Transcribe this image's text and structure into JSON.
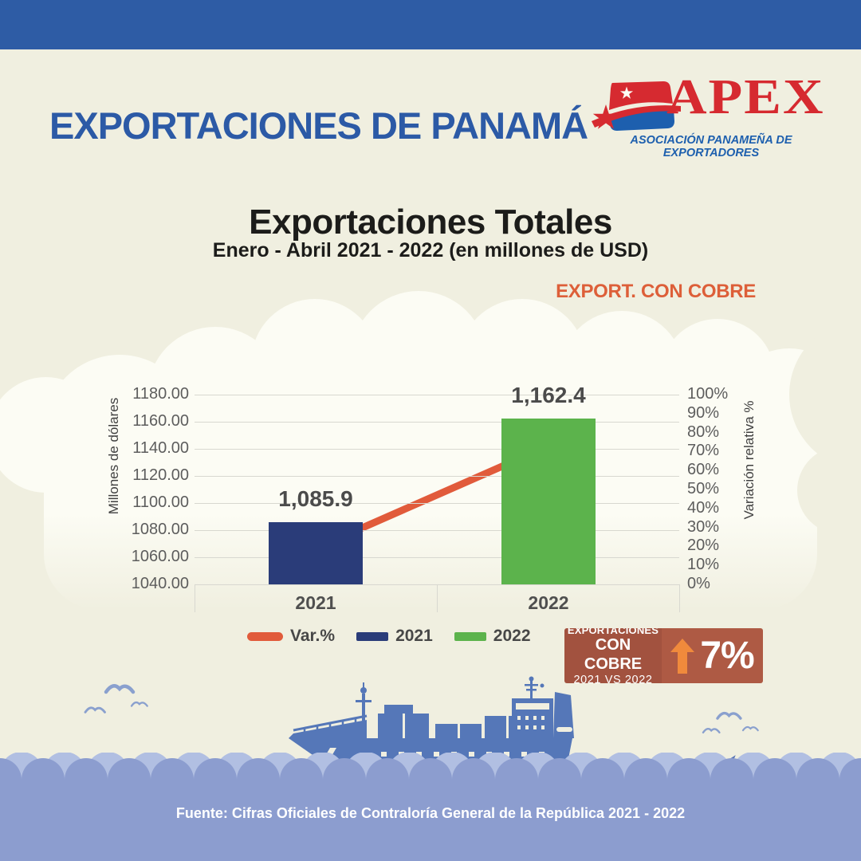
{
  "header": {
    "title": "EXPORTACIONES DE PANAMÁ",
    "logo": {
      "name": "APEX",
      "tagline": "ASOCIACIÓN PANAMEÑA DE EXPORTADORES"
    }
  },
  "chart_header": {
    "title": "Exportaciones Totales",
    "subtitle": "Enero - Abril 2021 - 2022 (en millones de USD)",
    "tag": "EXPORT. CON COBRE"
  },
  "chart_data": {
    "type": "bar",
    "categories": [
      "2021",
      "2022"
    ],
    "bar_series": {
      "name": "Exportaciones Totales",
      "values": [
        1085.9,
        1162.4
      ],
      "labels": [
        "1,085.9",
        "1,162.4"
      ],
      "colors": [
        "#2a3c79",
        "#5cb34c"
      ]
    },
    "line_series": {
      "name": "Var.%",
      "color": "#e15b3b",
      "points_pct": [
        19,
        73
      ]
    },
    "y_left": {
      "label": "Millones de dólares",
      "min": 1040,
      "max": 1180,
      "step": 20,
      "ticks": [
        "1180.00",
        "1160.00",
        "1140.00",
        "1120.00",
        "1100.00",
        "1080.00",
        "1060.00",
        "1040.00"
      ]
    },
    "y_right": {
      "label": "Variación relativa %",
      "min": 0,
      "max": 100,
      "step": 10,
      "ticks": [
        "100%",
        "90%",
        "80%",
        "70%",
        "60%",
        "50%",
        "40%",
        "30%",
        "20%",
        "10%",
        "0%"
      ]
    },
    "grid": true,
    "legend_position": "bottom",
    "legend": [
      {
        "label": "Var.%",
        "color": "#e15b3b",
        "type": "line"
      },
      {
        "label": "2021",
        "color": "#2a3c79",
        "type": "square"
      },
      {
        "label": "2022",
        "color": "#5cb34c",
        "type": "square"
      }
    ]
  },
  "badge": {
    "line1": "EXPORTACIONES",
    "line2": "CON COBRE",
    "line3": "2021 VS 2022",
    "value": "7%",
    "arrow": "up"
  },
  "footer": {
    "source": "Fuente: Cifras Oficiales de Contraloría General de la República 2021 - 2022"
  },
  "colors": {
    "background": "#f0efe0",
    "top_bar": "#2e5ca5",
    "title_blue": "#2c5aa6",
    "apex_red": "#d62a30",
    "apex_blue": "#1d5fae",
    "tag_orange": "#dd5f39",
    "bar_2021": "#2a3c79",
    "bar_2022": "#5cb34c",
    "line_orange": "#e15b3b",
    "sea": "#8c9dcf",
    "wave_light": "#b1bfe2",
    "ship_blue": "#5577b8",
    "bird_blue": "#8aa0ce",
    "badge_left": "#a2523f",
    "badge_right": "#ae5a44",
    "badge_arrow": "#f08a3c"
  }
}
